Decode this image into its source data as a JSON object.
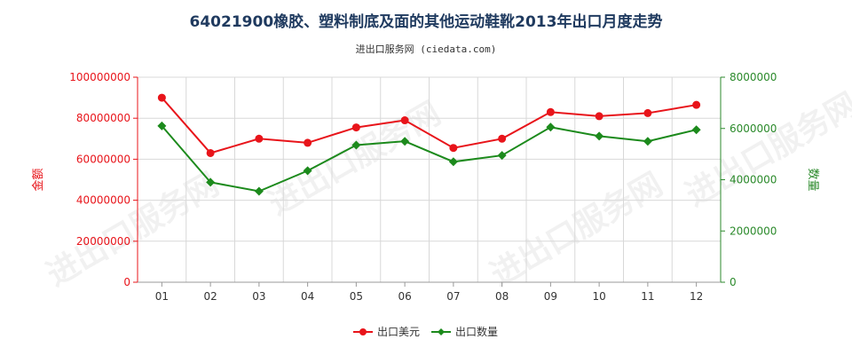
{
  "chart_data": {
    "type": "line",
    "title": "64021900橡胶、塑料制底及面的其他运动鞋靴2013年出口月度走势",
    "subtitle": "进出口服务网 (ciedata.com)",
    "categories": [
      "01",
      "02",
      "03",
      "04",
      "05",
      "06",
      "07",
      "08",
      "09",
      "10",
      "11",
      "12"
    ],
    "left_axis": {
      "label": "金额",
      "ylim": [
        0,
        100000000
      ],
      "ticks": [
        "0",
        "20000000",
        "40000000",
        "60000000",
        "80000000",
        "100000000"
      ],
      "color": "#e8141a"
    },
    "right_axis": {
      "label": "数量",
      "ylim": [
        0,
        8000000
      ],
      "ticks": [
        "0",
        "2000000",
        "4000000",
        "6000000",
        "8000000"
      ],
      "color": "#2b8a2b"
    },
    "series": [
      {
        "name": "出口美元",
        "axis": "left",
        "color": "#e8141a",
        "values": [
          90000000,
          63000000,
          70000000,
          68000000,
          75500000,
          79000000,
          65500000,
          70000000,
          83000000,
          81000000,
          82500000,
          86500000
        ]
      },
      {
        "name": "出口数量",
        "axis": "right",
        "color": "#1c8a1c",
        "values": [
          6100000,
          3900000,
          3550000,
          4350000,
          5350000,
          5500000,
          4700000,
          4950000,
          6050000,
          5700000,
          5500000,
          5950000
        ]
      }
    ],
    "grid": true,
    "legend_position": "bottom-center"
  },
  "watermark_text": "进出口服务网"
}
